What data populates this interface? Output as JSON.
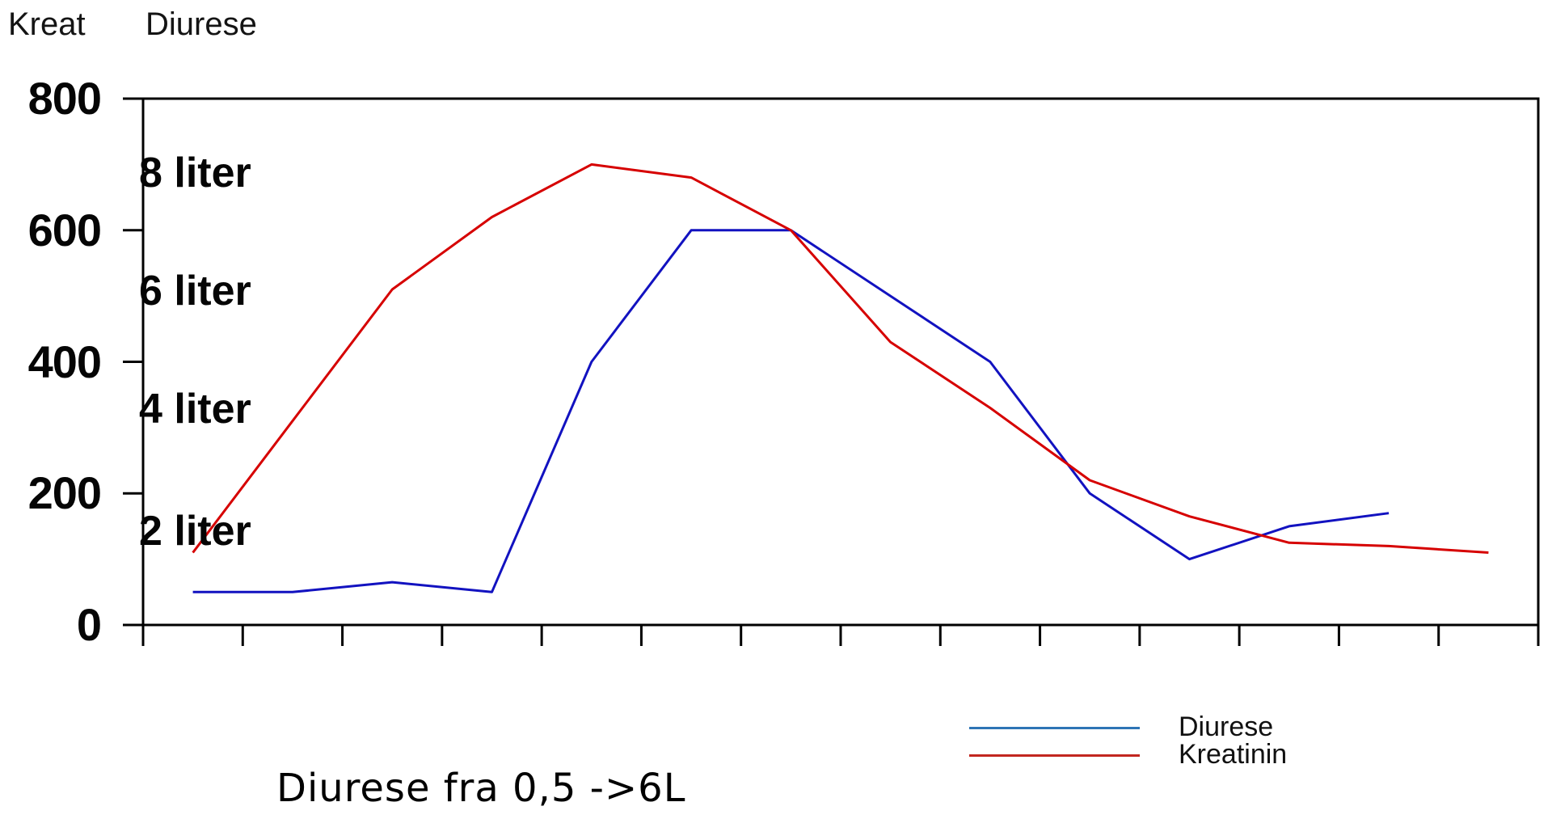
{
  "header": {
    "left_axis_title": "Kreat",
    "right_axis_title": "Diurese"
  },
  "y_axis": {
    "tick_labels": [
      "800",
      "600",
      "400",
      "200",
      "0"
    ],
    "tick_values": [
      800,
      600,
      400,
      200,
      0
    ]
  },
  "volume_labels": [
    "8 liter",
    "6 liter",
    "4 liter",
    "2 liter"
  ],
  "legend": {
    "items": [
      {
        "label": "Diurese",
        "color": "#2e74b5"
      },
      {
        "label": "Kreatinin",
        "color": "#c2261f"
      }
    ]
  },
  "caption": "Diurese fra 0,5 ->6L",
  "chart_data": {
    "type": "line",
    "title": "",
    "left_axis_title": "Kreat",
    "right_axis_title": "Diurese",
    "categories_count": 14,
    "x_tick_count": 15,
    "x_tick_labels_visible": false,
    "ylim": [
      0,
      800
    ],
    "y_ticks": [
      0,
      200,
      400,
      600,
      800
    ],
    "grid": false,
    "legend_position": "bottom-right",
    "axis_color": "#000000",
    "series": [
      {
        "name": "Diurese",
        "color": "#1212c0",
        "values": [
          50,
          50,
          65,
          50,
          400,
          600,
          600,
          500,
          400,
          200,
          100,
          150,
          170
        ]
      },
      {
        "name": "Kreatinin",
        "color": "#d60000",
        "values": [
          110,
          310,
          510,
          620,
          700,
          680,
          600,
          430,
          330,
          220,
          165,
          125,
          120,
          110
        ]
      }
    ],
    "annotations": {
      "inner_scale_labels": [
        "8 liter",
        "6 liter",
        "4 liter",
        "2 liter"
      ],
      "caption": "Diurese fra 0,5 ->6L"
    }
  }
}
